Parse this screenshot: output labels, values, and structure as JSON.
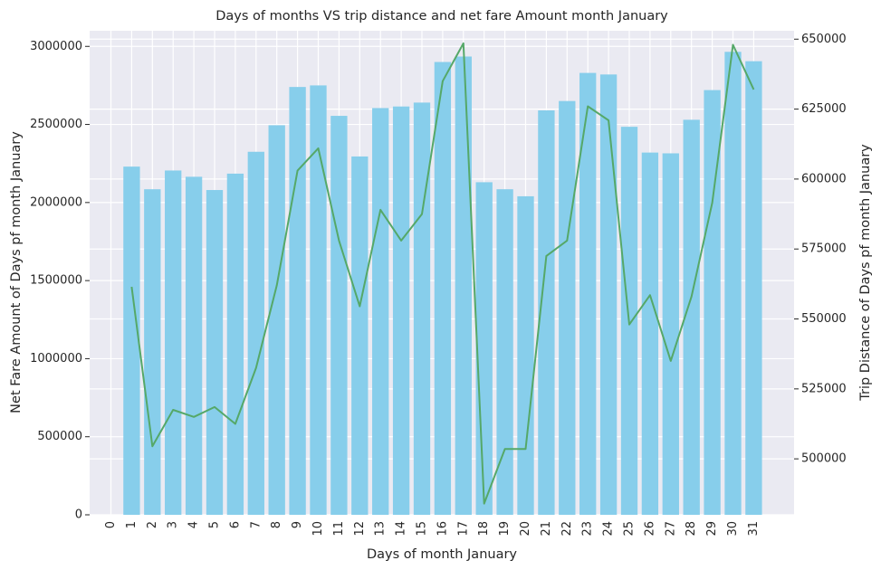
{
  "chart_data": {
    "type": "bar",
    "title": "Days of months VS trip distance and net fare Amount month January",
    "xlabel": "Days of month January",
    "ylabel": "Net Fare Amount of Days pf month January",
    "y2label": "Trip Distance of Days pf month January",
    "categories": [
      "0",
      "1",
      "2",
      "3",
      "4",
      "5",
      "6",
      "7",
      "8",
      "9",
      "10",
      "11",
      "12",
      "13",
      "14",
      "15",
      "16",
      "17",
      "18",
      "19",
      "20",
      "21",
      "22",
      "23",
      "24",
      "25",
      "26",
      "27",
      "28",
      "29",
      "30",
      "31"
    ],
    "ylim": [
      0,
      3100000
    ],
    "y2lim": [
      480000,
      653000
    ],
    "yticks": [
      0,
      500000,
      1000000,
      1500000,
      2000000,
      2500000,
      3000000
    ],
    "y2ticks": [
      500000,
      525000,
      550000,
      575000,
      600000,
      625000,
      650000
    ],
    "grid": true,
    "series": [
      {
        "type": "bar",
        "axis": "left",
        "color": "#87ceeb",
        "x": [
          1,
          2,
          3,
          4,
          5,
          6,
          7,
          8,
          9,
          10,
          11,
          12,
          13,
          14,
          15,
          16,
          17,
          18,
          19,
          20,
          21,
          22,
          23,
          24,
          25,
          26,
          27,
          28,
          29,
          30,
          31
        ],
        "values": [
          2230000,
          2085000,
          2205000,
          2165000,
          2080000,
          2185000,
          2325000,
          2495000,
          2740000,
          2750000,
          2555000,
          2295000,
          2605000,
          2615000,
          2640000,
          2900000,
          2935000,
          2130000,
          2085000,
          2040000,
          2590000,
          2650000,
          2830000,
          2820000,
          2485000,
          2320000,
          2315000,
          2530000,
          2720000,
          2965000,
          2905000
        ]
      },
      {
        "type": "line",
        "axis": "right",
        "color": "#55a868",
        "x": [
          1,
          2,
          3,
          4,
          5,
          6,
          7,
          8,
          9,
          10,
          11,
          12,
          13,
          14,
          15,
          16,
          17,
          18,
          19,
          20,
          21,
          22,
          23,
          24,
          25,
          26,
          27,
          28,
          29,
          30,
          31
        ],
        "values": [
          561500,
          504500,
          517500,
          515000,
          518500,
          512500,
          532500,
          562000,
          603000,
          611000,
          578000,
          554500,
          589000,
          578000,
          587500,
          635000,
          648500,
          484000,
          503500,
          503500,
          572500,
          578000,
          626000,
          621000,
          548000,
          558500,
          535000,
          558000,
          591500,
          648000,
          632000
        ]
      }
    ]
  }
}
